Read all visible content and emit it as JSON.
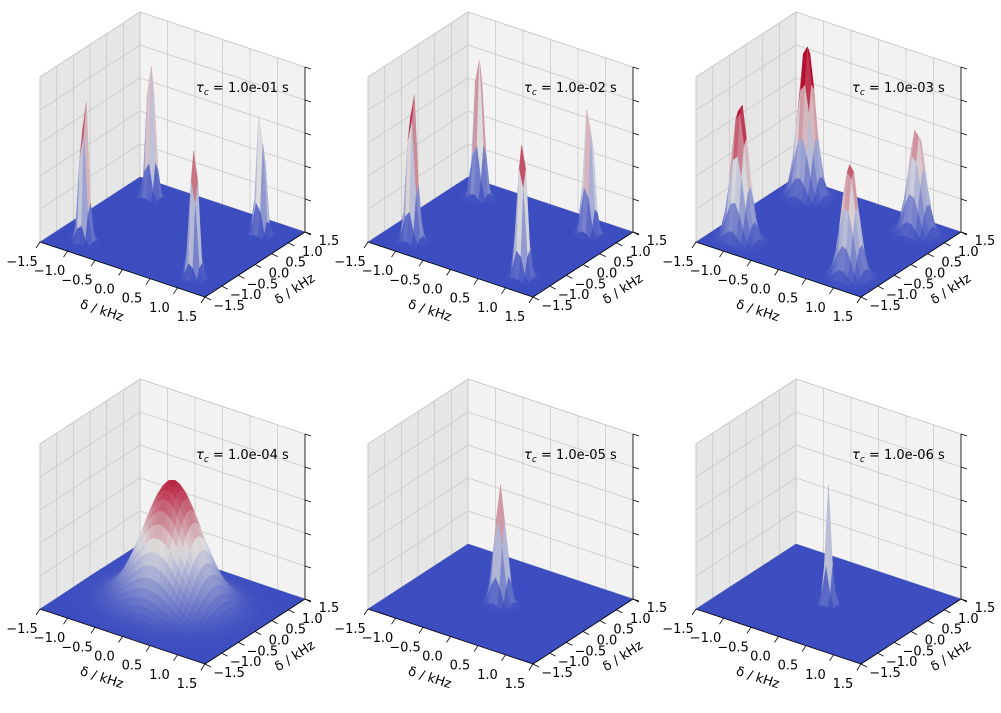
{
  "figure": {
    "description_free": true
  },
  "chart_data": [
    {
      "type": "surface",
      "panel": "1",
      "annotation_prefix": "τ",
      "annotation_sub": "c",
      "annotation_value": " = 1.0e-01 s",
      "xlabel": "δ / kHz",
      "ylabel": "δ / kHz",
      "xticks": [
        "−1.5",
        "−1.0",
        "−0.5",
        "0.0",
        "0.5",
        "1.0",
        "1.5"
      ],
      "yticks": [
        "−1.5",
        "−1.0",
        "−0.5",
        "0.0",
        "0.5",
        "1.0",
        "1.5"
      ],
      "xlim": [
        -1.5,
        1.5
      ],
      "ylim": [
        -1.5,
        1.5
      ],
      "peaks": [
        {
          "x": -1.0,
          "y": -1.0,
          "height": 1.0,
          "width": 0.06
        },
        {
          "x": -1.0,
          "y": 1.0,
          "height": 0.95,
          "width": 0.06
        },
        {
          "x": 1.0,
          "y": -1.0,
          "height": 0.9,
          "width": 0.06
        },
        {
          "x": 1.0,
          "y": 1.0,
          "height": 0.85,
          "width": 0.06
        }
      ]
    },
    {
      "type": "surface",
      "panel": "2",
      "annotation_prefix": "τ",
      "annotation_sub": "c",
      "annotation_value": " = 1.0e-02 s",
      "xlabel": "δ / kHz",
      "ylabel": "δ / kHz",
      "xticks": [
        "−1.5",
        "−1.0",
        "−0.5",
        "0.0",
        "0.5",
        "1.0",
        "1.5"
      ],
      "yticks": [
        "−1.5",
        "−1.0",
        "−0.5",
        "0.0",
        "0.5",
        "1.0",
        "1.5"
      ],
      "xlim": [
        -1.5,
        1.5
      ],
      "ylim": [
        -1.5,
        1.5
      ],
      "peaks": [
        {
          "x": -1.0,
          "y": -1.0,
          "height": 1.0,
          "width": 0.07
        },
        {
          "x": -1.0,
          "y": 1.0,
          "height": 0.95,
          "width": 0.07
        },
        {
          "x": 1.0,
          "y": -1.0,
          "height": 0.9,
          "width": 0.07
        },
        {
          "x": 1.0,
          "y": 1.0,
          "height": 0.85,
          "width": 0.07
        }
      ]
    },
    {
      "type": "surface",
      "panel": "3",
      "annotation_prefix": "τ",
      "annotation_sub": "c",
      "annotation_value": " = 1.0e-03 s",
      "xlabel": "δ / kHz",
      "ylabel": "δ / kHz",
      "xticks": [
        "−1.5",
        "−1.0",
        "−0.5",
        "0.0",
        "0.5",
        "1.0",
        "1.5"
      ],
      "yticks": [
        "−1.5",
        "−1.0",
        "−0.5",
        "0.0",
        "0.5",
        "1.0",
        "1.5"
      ],
      "xlim": [
        -1.5,
        1.5
      ],
      "ylim": [
        -1.5,
        1.5
      ],
      "peaks": [
        {
          "x": -1.0,
          "y": -1.0,
          "height": 0.85,
          "width": 0.13
        },
        {
          "x": -1.0,
          "y": 1.0,
          "height": 0.95,
          "width": 0.13
        },
        {
          "x": 1.0,
          "y": -1.0,
          "height": 0.7,
          "width": 0.13
        },
        {
          "x": 1.0,
          "y": 1.0,
          "height": 0.65,
          "width": 0.13
        }
      ]
    },
    {
      "type": "surface",
      "panel": "4",
      "annotation_prefix": "τ",
      "annotation_sub": "c",
      "annotation_value": " = 1.0e-04 s",
      "xlabel": "δ / kHz",
      "ylabel": "δ / kHz",
      "xticks": [
        "−1.5",
        "−1.0",
        "−0.5",
        "0.0",
        "0.5",
        "1.0",
        "1.5"
      ],
      "yticks": [
        "−1.5",
        "−1.0",
        "−0.5",
        "0.0",
        "0.5",
        "1.0",
        "1.5"
      ],
      "xlim": [
        -1.5,
        1.5
      ],
      "ylim": [
        -1.5,
        1.5
      ],
      "peaks": [
        {
          "x": 0.0,
          "y": 0.0,
          "height": 0.75,
          "width": 0.45
        }
      ]
    },
    {
      "type": "surface",
      "panel": "5",
      "annotation_prefix": "τ",
      "annotation_sub": "c",
      "annotation_value": " = 1.0e-05 s",
      "xlabel": "δ / kHz",
      "ylabel": "δ / kHz",
      "xticks": [
        "−1.5",
        "−1.0",
        "−0.5",
        "0.0",
        "0.5",
        "1.0",
        "1.5"
      ],
      "yticks": [
        "−1.5",
        "−1.0",
        "−0.5",
        "0.0",
        "0.5",
        "1.0",
        "1.5"
      ],
      "xlim": [
        -1.5,
        1.5
      ],
      "ylim": [
        -1.5,
        1.5
      ],
      "peaks": [
        {
          "x": 0.0,
          "y": 0.0,
          "height": 0.72,
          "width": 0.09
        }
      ]
    },
    {
      "type": "surface",
      "panel": "6",
      "annotation_prefix": "τ",
      "annotation_sub": "c",
      "annotation_value": " = 1.0e-06 s",
      "xlabel": "δ / kHz",
      "ylabel": "δ / kHz",
      "xticks": [
        "−1.5",
        "−1.0",
        "−0.5",
        "0.0",
        "0.5",
        "1.0",
        "1.5"
      ],
      "yticks": [
        "−1.5",
        "−1.0",
        "−0.5",
        "0.0",
        "0.5",
        "1.0",
        "1.5"
      ],
      "xlim": [
        -1.5,
        1.5
      ],
      "ylim": [
        -1.5,
        1.5
      ],
      "peaks": [
        {
          "x": 0.0,
          "y": 0.0,
          "height": 0.72,
          "width": 0.05
        }
      ]
    }
  ],
  "colors": {
    "low": "#3b4cc0",
    "mid": "#dddddd",
    "high": "#b40426",
    "pane_back": "#f2f2f2",
    "pane_side": "#e6e6e6",
    "grid": "#c8c8c8"
  }
}
